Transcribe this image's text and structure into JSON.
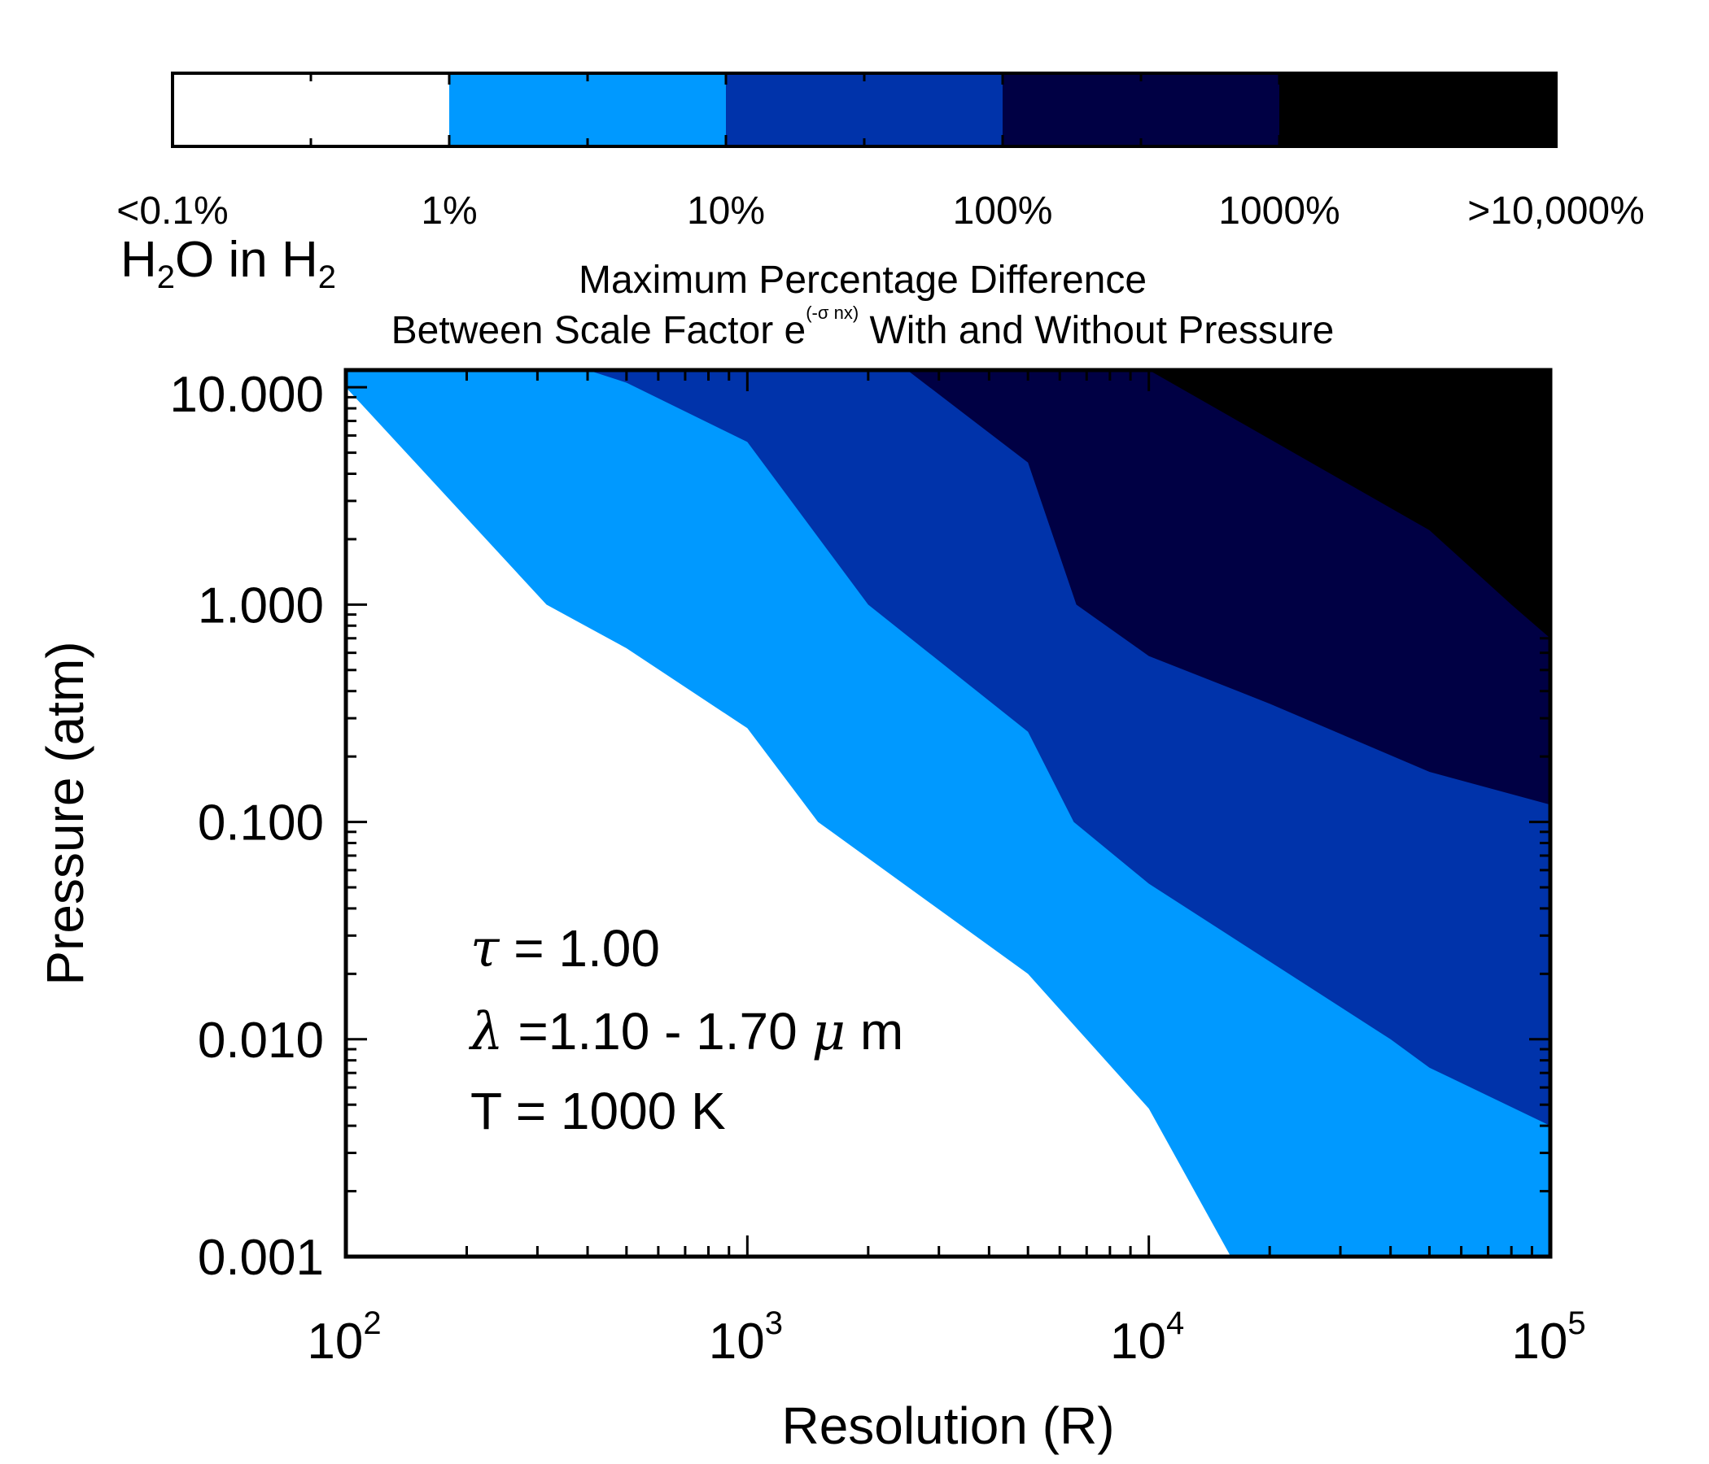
{
  "chart_data": {
    "type": "filled-contour",
    "title_line1": "Maximum Percentage Difference",
    "title_line2_prefix": "Between Scale Factor e",
    "title_line2_superscript": "(-σ nx)",
    "title_line2_suffix": " With and Without Pressure",
    "colorbar_title": {
      "main": "H",
      "sub1": "2",
      "mid": "O in H",
      "sub2": "2"
    },
    "levels": [
      {
        "label": "<0.1%",
        "color": "#ffffff"
      },
      {
        "label": "1%",
        "color": "#0099ff"
      },
      {
        "label": "10%",
        "color": "#0033aa"
      },
      {
        "label": "100%",
        "color": "#000044"
      },
      {
        "label": "1000%",
        "color": "#000000"
      }
    ],
    "colorbar_tick_labels": [
      "<0.1%",
      "1%",
      "10%",
      "100%",
      "1000%",
      ">10,000%"
    ],
    "xlabel": "Resolution (R)",
    "ylabel": "Pressure (atm)",
    "xscale": "log",
    "yscale": "log",
    "xlim": [
      100,
      100000
    ],
    "ylim": [
      0.001,
      12
    ],
    "x_tick_values": [
      100,
      1000,
      10000,
      100000
    ],
    "x_tick_labels": [
      {
        "base": "10",
        "exp": "2"
      },
      {
        "base": "10",
        "exp": "3"
      },
      {
        "base": "10",
        "exp": "4"
      },
      {
        "base": "10",
        "exp": "5"
      }
    ],
    "y_tick_values": [
      10,
      1,
      0.1,
      0.01,
      0.001
    ],
    "y_tick_labels": [
      "10.000",
      "1.000",
      "0.100",
      "0.010",
      "0.001"
    ],
    "boundaries": [
      {
        "name": "1%",
        "points": [
          [
            100,
            10
          ],
          [
            316,
            1.0
          ],
          [
            500,
            0.63
          ],
          [
            1000,
            0.27
          ],
          [
            1500,
            0.1
          ],
          [
            5000,
            0.02
          ],
          [
            7000,
            0.01
          ],
          [
            10000,
            0.0048
          ],
          [
            16000,
            0.001
          ]
        ]
      },
      {
        "name": "10%",
        "points": [
          [
            400,
            12
          ],
          [
            500,
            10.5
          ],
          [
            1000,
            5.6
          ],
          [
            2000,
            1.0
          ],
          [
            5000,
            0.26
          ],
          [
            6500,
            0.1
          ],
          [
            10000,
            0.052
          ],
          [
            40000,
            0.01
          ],
          [
            50000,
            0.0074
          ],
          [
            100000,
            0.004
          ]
        ]
      },
      {
        "name": "100%",
        "points": [
          [
            2500,
            12
          ],
          [
            5000,
            4.5
          ],
          [
            6600,
            1.0
          ],
          [
            10000,
            0.58
          ],
          [
            20000,
            0.35
          ],
          [
            50000,
            0.17
          ],
          [
            100000,
            0.12
          ]
        ]
      },
      {
        "name": "1000%",
        "points": [
          [
            10000,
            12
          ],
          [
            50000,
            2.2
          ],
          [
            80000,
            1.0
          ],
          [
            100000,
            0.7
          ]
        ]
      }
    ],
    "annotations": {
      "tau_symbol": "τ",
      "tau_value": " = 1.00",
      "lambda_symbol": "λ",
      "lambda_value": " =1.10 - 1.70 ",
      "mu_symbol": "μ",
      "lambda_unit": " m",
      "temperature": "T = 1000 K"
    }
  }
}
